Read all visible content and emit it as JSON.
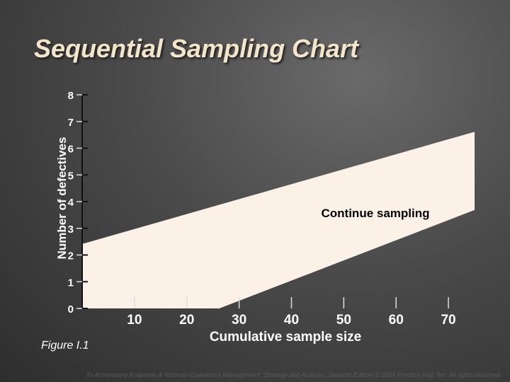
{
  "chart_data": {
    "type": "area",
    "title": "Sequential Sampling Chart",
    "xlabel": "Cumulative sample size",
    "ylabel": "Number of defectives",
    "xlim": [
      0,
      75
    ],
    "ylim": [
      0,
      8
    ],
    "x_ticks": [
      10,
      20,
      30,
      40,
      50,
      60,
      70
    ],
    "y_ticks": [
      0,
      1,
      2,
      3,
      4,
      5,
      6,
      7,
      8
    ],
    "region_label": "Continue sampling",
    "lines": [
      {
        "x": [
          0,
          75
        ],
        "y": [
          2.4,
          6.6
        ]
      },
      {
        "x": [
          26,
          75
        ],
        "y": [
          0,
          3.7
        ]
      }
    ],
    "colors": {
      "region": "#fbf1e6",
      "background": "#4a4a4a",
      "title": "#f3e6c8"
    }
  },
  "figure_label": "Figure I.1",
  "footer": "To Accompany Krajewski & Ritzman Operations Management: Strategy and Analysis, Seventh Edition © 2004 Prentice Hall, Inc. All rights reserved."
}
